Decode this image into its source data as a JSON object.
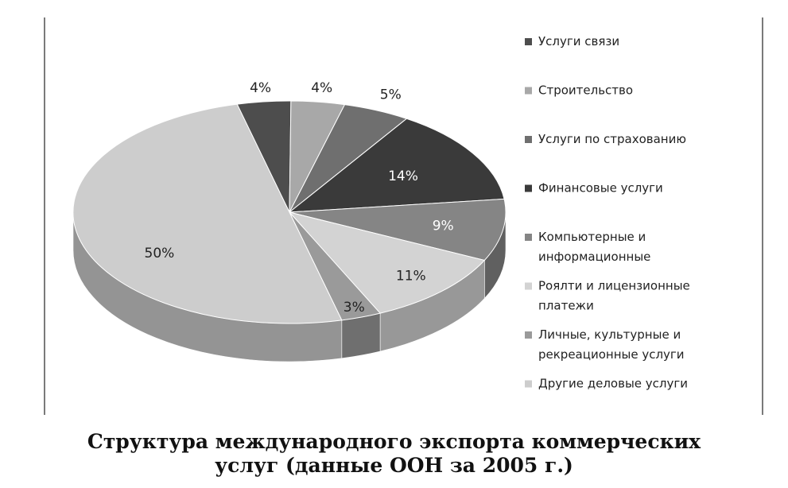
{
  "chart_data": {
    "type": "pie",
    "style": "3d",
    "legend_position": "right",
    "title": "",
    "slices": [
      {
        "name": "Услуги связи",
        "label": "4%",
        "value": 4,
        "color": "#4d4d4d"
      },
      {
        "name": "Строительство",
        "label": "4%",
        "value": 4,
        "color": "#a8a8a8"
      },
      {
        "name": "Услуги по страхованию",
        "label": "5%",
        "value": 5,
        "color": "#6f6f6f"
      },
      {
        "name": "Финансовые услуги",
        "label": "14%",
        "value": 14,
        "color": "#3a3a3a"
      },
      {
        "name": "Компьютерные и информационные",
        "label": "9%",
        "value": 9,
        "color": "#858585"
      },
      {
        "name": "Роялти и лицензионные платежи",
        "label": "11%",
        "value": 11,
        "color": "#d3d3d3"
      },
      {
        "name": "Личные, культурные и рекреационные услуги",
        "label": "3%",
        "value": 3,
        "color": "#9a9a9a"
      },
      {
        "name": "Другие деловые услуги",
        "label": "50%",
        "value": 50,
        "color": "#cdcdcd"
      }
    ]
  },
  "legend": {
    "items": [
      {
        "lines": [
          "Услуги связи"
        ]
      },
      {
        "lines": [
          "Строительство"
        ]
      },
      {
        "lines": [
          "Услуги по страхованию"
        ]
      },
      {
        "lines": [
          "Финансовые услуги"
        ]
      },
      {
        "lines": [
          "Компьютерные и",
          "информационные"
        ]
      },
      {
        "lines": [
          "Роялти и лицензионные",
          "платежи"
        ]
      },
      {
        "lines": [
          "Личные, культурные и",
          "рекреационные услуги"
        ]
      },
      {
        "lines": [
          "Другие деловые услуги"
        ]
      }
    ]
  },
  "caption": {
    "line1": "Структура международного экспорта коммерческих",
    "line2": "услуг (данные ООН за 2005 г.)"
  }
}
